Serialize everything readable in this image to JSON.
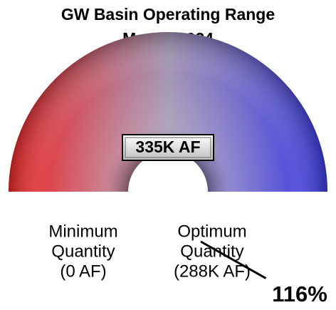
{
  "chart_data": {
    "type": "gauge",
    "title": "GW Basin Operating Range",
    "subtitle": "May 2, 2024",
    "min": 0,
    "max": 288000,
    "value": 335000,
    "value_label": "335K AF",
    "min_label": [
      "Minimum",
      "Quantity",
      "(0 AF)"
    ],
    "max_label": [
      "Optimum",
      "Quantity",
      "(288K AF)"
    ],
    "percent_label": "116%",
    "colors": [
      "#f02828",
      "#a496b4",
      "#3c3ce6"
    ]
  }
}
